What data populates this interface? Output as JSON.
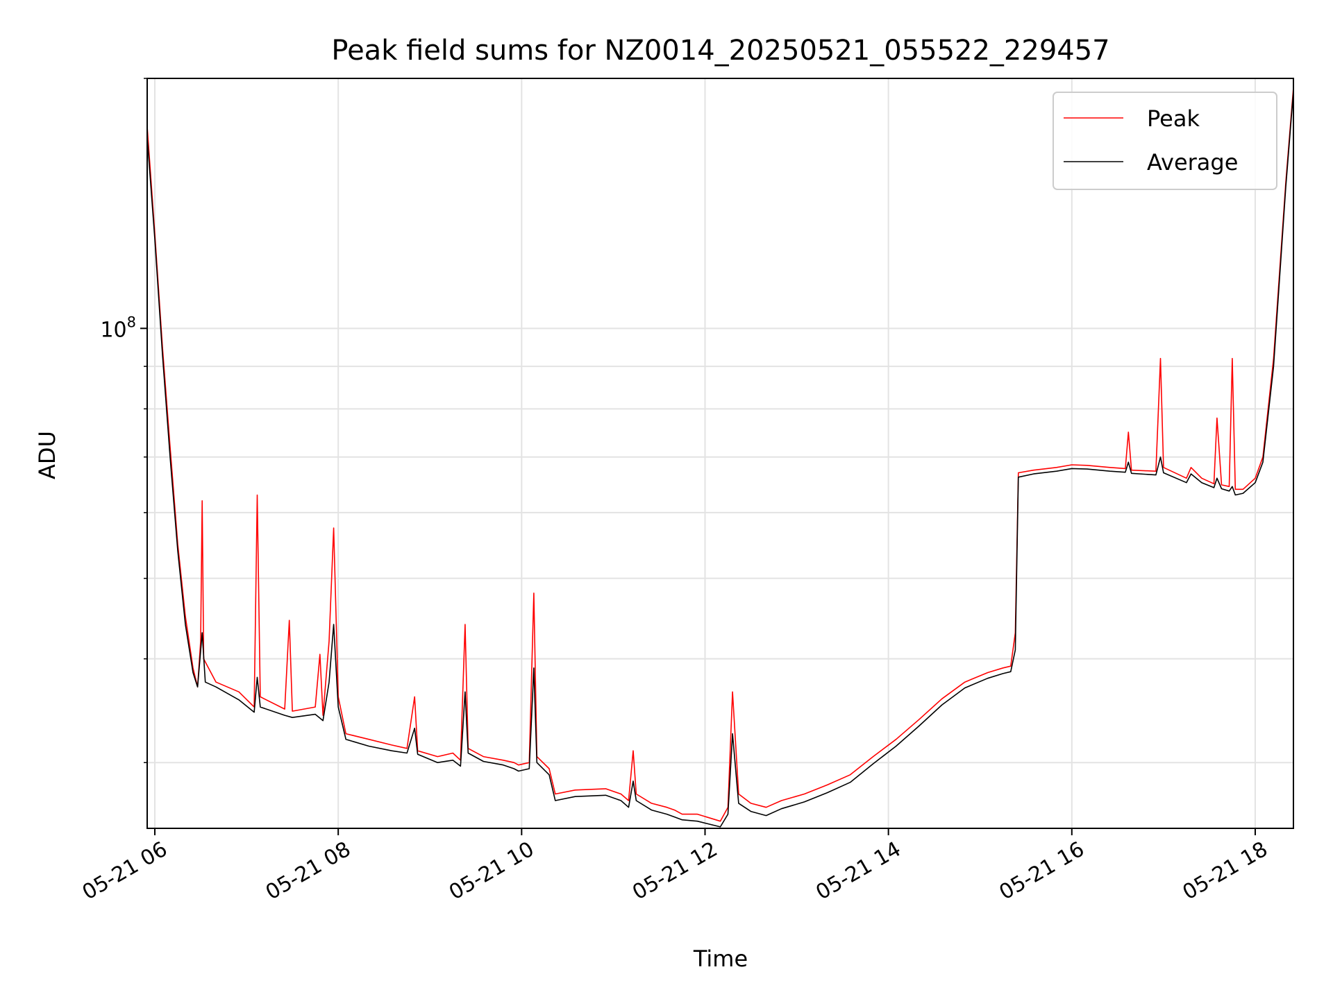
{
  "chart_data": {
    "type": "line",
    "title": "Peak field sums for NZ0014_20250521_055522_229457",
    "xlabel": "Time",
    "ylabel": "ADU",
    "yscale": "log",
    "grid": true,
    "legend_position": "top-right",
    "xlim": [
      "2025-05-21T05:55",
      "2025-05-21T18:25"
    ],
    "ylim": [
      25000000,
      200000000
    ],
    "x_ticks": [
      {
        "value": "2025-05-21T06:00",
        "label": "05-21 06"
      },
      {
        "value": "2025-05-21T08:00",
        "label": "05-21 08"
      },
      {
        "value": "2025-05-21T10:00",
        "label": "05-21 10"
      },
      {
        "value": "2025-05-21T12:00",
        "label": "05-21 12"
      },
      {
        "value": "2025-05-21T14:00",
        "label": "05-21 14"
      },
      {
        "value": "2025-05-21T16:00",
        "label": "05-21 16"
      },
      {
        "value": "2025-05-21T18:00",
        "label": "05-21 18"
      }
    ],
    "y_ticks": [
      {
        "value": 100000000,
        "base": "10",
        "exponent": "8"
      }
    ],
    "series": [
      {
        "name": "Peak",
        "color": "#ff0000",
        "points": [
          [
            "2025-05-21T05:55",
            175000000
          ],
          [
            "2025-05-21T06:00",
            130000000
          ],
          [
            "2025-05-21T06:05",
            95000000
          ],
          [
            "2025-05-21T06:10",
            72000000
          ],
          [
            "2025-05-21T06:15",
            55000000
          ],
          [
            "2025-05-21T06:20",
            45000000
          ],
          [
            "2025-05-21T06:25",
            39000000
          ],
          [
            "2025-05-21T06:28",
            37000000
          ],
          [
            "2025-05-21T06:30",
            42000000
          ],
          [
            "2025-05-21T06:31",
            62000000
          ],
          [
            "2025-05-21T06:32",
            40000000
          ],
          [
            "2025-05-21T06:40",
            37500000
          ],
          [
            "2025-05-21T06:55",
            36500000
          ],
          [
            "2025-05-21T07:05",
            35000000
          ],
          [
            "2025-05-21T07:07",
            63000000
          ],
          [
            "2025-05-21T07:09",
            36000000
          ],
          [
            "2025-05-21T07:25",
            34800000
          ],
          [
            "2025-05-21T07:28",
            44500000
          ],
          [
            "2025-05-21T07:30",
            34600000
          ],
          [
            "2025-05-21T07:45",
            35000000
          ],
          [
            "2025-05-21T07:48",
            40500000
          ],
          [
            "2025-05-21T07:50",
            34200000
          ],
          [
            "2025-05-21T07:54",
            42000000
          ],
          [
            "2025-05-21T07:57",
            57500000
          ],
          [
            "2025-05-21T08:00",
            36000000
          ],
          [
            "2025-05-21T08:05",
            32500000
          ],
          [
            "2025-05-21T08:20",
            32000000
          ],
          [
            "2025-05-21T08:35",
            31500000
          ],
          [
            "2025-05-21T08:45",
            31200000
          ],
          [
            "2025-05-21T08:50",
            36000000
          ],
          [
            "2025-05-21T08:52",
            31000000
          ],
          [
            "2025-05-21T09:05",
            30500000
          ],
          [
            "2025-05-21T09:15",
            30800000
          ],
          [
            "2025-05-21T09:20",
            30200000
          ],
          [
            "2025-05-21T09:23",
            44000000
          ],
          [
            "2025-05-21T09:25",
            31200000
          ],
          [
            "2025-05-21T09:35",
            30500000
          ],
          [
            "2025-05-21T09:48",
            30200000
          ],
          [
            "2025-05-21T09:55",
            30000000
          ],
          [
            "2025-05-21T09:58",
            29800000
          ],
          [
            "2025-05-21T10:05",
            30000000
          ],
          [
            "2025-05-21T10:08",
            48000000
          ],
          [
            "2025-05-21T10:10",
            30500000
          ],
          [
            "2025-05-21T10:18",
            29500000
          ],
          [
            "2025-05-21T10:22",
            27500000
          ],
          [
            "2025-05-21T10:35",
            27800000
          ],
          [
            "2025-05-21T10:55",
            27900000
          ],
          [
            "2025-05-21T11:05",
            27500000
          ],
          [
            "2025-05-21T11:10",
            27000000
          ],
          [
            "2025-05-21T11:13",
            31000000
          ],
          [
            "2025-05-21T11:15",
            27500000
          ],
          [
            "2025-05-21T11:25",
            26800000
          ],
          [
            "2025-05-21T11:35",
            26500000
          ],
          [
            "2025-05-21T11:40",
            26300000
          ],
          [
            "2025-05-21T11:45",
            26000000
          ],
          [
            "2025-05-21T11:55",
            26000000
          ],
          [
            "2025-05-21T12:10",
            25500000
          ],
          [
            "2025-05-21T12:15",
            26500000
          ],
          [
            "2025-05-21T12:18",
            36500000
          ],
          [
            "2025-05-21T12:22",
            27500000
          ],
          [
            "2025-05-21T12:30",
            26800000
          ],
          [
            "2025-05-21T12:40",
            26500000
          ],
          [
            "2025-05-21T12:50",
            27000000
          ],
          [
            "2025-05-21T13:05",
            27500000
          ],
          [
            "2025-05-21T13:20",
            28200000
          ],
          [
            "2025-05-21T13:35",
            29000000
          ],
          [
            "2025-05-21T13:50",
            30500000
          ],
          [
            "2025-05-21T14:05",
            32000000
          ],
          [
            "2025-05-21T14:20",
            33800000
          ],
          [
            "2025-05-21T14:35",
            35800000
          ],
          [
            "2025-05-21T14:50",
            37500000
          ],
          [
            "2025-05-21T15:05",
            38500000
          ],
          [
            "2025-05-21T15:15",
            39000000
          ],
          [
            "2025-05-21T15:20",
            39200000
          ],
          [
            "2025-05-21T15:23",
            43000000
          ],
          [
            "2025-05-21T15:25",
            67000000
          ],
          [
            "2025-05-21T15:35",
            67500000
          ],
          [
            "2025-05-21T15:50",
            68000000
          ],
          [
            "2025-05-21T16:00",
            68500000
          ],
          [
            "2025-05-21T16:10",
            68400000
          ],
          [
            "2025-05-21T16:25",
            68000000
          ],
          [
            "2025-05-21T16:35",
            67800000
          ],
          [
            "2025-05-21T16:37",
            75000000
          ],
          [
            "2025-05-21T16:39",
            67500000
          ],
          [
            "2025-05-21T16:55",
            67300000
          ],
          [
            "2025-05-21T16:58",
            92000000
          ],
          [
            "2025-05-21T17:00",
            68000000
          ],
          [
            "2025-05-21T17:15",
            66000000
          ],
          [
            "2025-05-21T17:18",
            68000000
          ],
          [
            "2025-05-21T17:25",
            66000000
          ],
          [
            "2025-05-21T17:33",
            65000000
          ],
          [
            "2025-05-21T17:35",
            78000000
          ],
          [
            "2025-05-21T17:38",
            64800000
          ],
          [
            "2025-05-21T17:43",
            64500000
          ],
          [
            "2025-05-21T17:45",
            92000000
          ],
          [
            "2025-05-21T17:47",
            64000000
          ],
          [
            "2025-05-21T17:52",
            64000000
          ],
          [
            "2025-05-21T18:00",
            66000000
          ],
          [
            "2025-05-21T18:05",
            70000000
          ],
          [
            "2025-05-21T18:12",
            92000000
          ],
          [
            "2025-05-21T18:20",
            150000000
          ],
          [
            "2025-05-21T18:25",
            195000000
          ]
        ]
      },
      {
        "name": "Average",
        "color": "#000000",
        "points": [
          [
            "2025-05-21T05:55",
            170000000
          ],
          [
            "2025-05-21T06:00",
            128000000
          ],
          [
            "2025-05-21T06:05",
            93000000
          ],
          [
            "2025-05-21T06:10",
            70000000
          ],
          [
            "2025-05-21T06:15",
            54000000
          ],
          [
            "2025-05-21T06:20",
            44000000
          ],
          [
            "2025-05-21T06:25",
            38500000
          ],
          [
            "2025-05-21T06:28",
            37000000
          ],
          [
            "2025-05-21T06:31",
            43000000
          ],
          [
            "2025-05-21T06:33",
            37500000
          ],
          [
            "2025-05-21T06:40",
            37000000
          ],
          [
            "2025-05-21T06:55",
            35700000
          ],
          [
            "2025-05-21T07:05",
            34500000
          ],
          [
            "2025-05-21T07:07",
            38000000
          ],
          [
            "2025-05-21T07:09",
            35000000
          ],
          [
            "2025-05-21T07:25",
            34200000
          ],
          [
            "2025-05-21T07:30",
            34000000
          ],
          [
            "2025-05-21T07:45",
            34300000
          ],
          [
            "2025-05-21T07:50",
            33700000
          ],
          [
            "2025-05-21T07:54",
            37500000
          ],
          [
            "2025-05-21T07:57",
            44000000
          ],
          [
            "2025-05-21T08:00",
            35000000
          ],
          [
            "2025-05-21T08:05",
            32000000
          ],
          [
            "2025-05-21T08:20",
            31400000
          ],
          [
            "2025-05-21T08:35",
            31000000
          ],
          [
            "2025-05-21T08:45",
            30800000
          ],
          [
            "2025-05-21T08:50",
            33000000
          ],
          [
            "2025-05-21T08:52",
            30700000
          ],
          [
            "2025-05-21T09:05",
            30000000
          ],
          [
            "2025-05-21T09:15",
            30200000
          ],
          [
            "2025-05-21T09:20",
            29700000
          ],
          [
            "2025-05-21T09:23",
            36500000
          ],
          [
            "2025-05-21T09:25",
            30800000
          ],
          [
            "2025-05-21T09:35",
            30100000
          ],
          [
            "2025-05-21T09:48",
            29800000
          ],
          [
            "2025-05-21T09:55",
            29500000
          ],
          [
            "2025-05-21T09:58",
            29300000
          ],
          [
            "2025-05-21T10:05",
            29500000
          ],
          [
            "2025-05-21T10:08",
            39000000
          ],
          [
            "2025-05-21T10:10",
            30000000
          ],
          [
            "2025-05-21T10:18",
            29000000
          ],
          [
            "2025-05-21T10:22",
            27000000
          ],
          [
            "2025-05-21T10:35",
            27300000
          ],
          [
            "2025-05-21T10:55",
            27400000
          ],
          [
            "2025-05-21T11:05",
            27000000
          ],
          [
            "2025-05-21T11:10",
            26500000
          ],
          [
            "2025-05-21T11:13",
            28500000
          ],
          [
            "2025-05-21T11:15",
            27000000
          ],
          [
            "2025-05-21T11:25",
            26300000
          ],
          [
            "2025-05-21T11:35",
            26000000
          ],
          [
            "2025-05-21T11:40",
            25800000
          ],
          [
            "2025-05-21T11:45",
            25600000
          ],
          [
            "2025-05-21T11:55",
            25500000
          ],
          [
            "2025-05-21T12:10",
            25100000
          ],
          [
            "2025-05-21T12:15",
            26000000
          ],
          [
            "2025-05-21T12:18",
            32500000
          ],
          [
            "2025-05-21T12:22",
            26800000
          ],
          [
            "2025-05-21T12:30",
            26200000
          ],
          [
            "2025-05-21T12:40",
            25900000
          ],
          [
            "2025-05-21T12:50",
            26400000
          ],
          [
            "2025-05-21T13:05",
            26900000
          ],
          [
            "2025-05-21T13:20",
            27600000
          ],
          [
            "2025-05-21T13:35",
            28400000
          ],
          [
            "2025-05-21T13:50",
            29900000
          ],
          [
            "2025-05-21T14:05",
            31400000
          ],
          [
            "2025-05-21T14:20",
            33200000
          ],
          [
            "2025-05-21T14:35",
            35200000
          ],
          [
            "2025-05-21T14:50",
            36900000
          ],
          [
            "2025-05-21T15:05",
            37900000
          ],
          [
            "2025-05-21T15:15",
            38400000
          ],
          [
            "2025-05-21T15:20",
            38600000
          ],
          [
            "2025-05-21T15:23",
            41000000
          ],
          [
            "2025-05-21T15:25",
            66200000
          ],
          [
            "2025-05-21T15:35",
            66800000
          ],
          [
            "2025-05-21T15:50",
            67300000
          ],
          [
            "2025-05-21T16:00",
            67800000
          ],
          [
            "2025-05-21T16:10",
            67700000
          ],
          [
            "2025-05-21T16:25",
            67300000
          ],
          [
            "2025-05-21T16:35",
            67100000
          ],
          [
            "2025-05-21T16:37",
            69000000
          ],
          [
            "2025-05-21T16:39",
            66900000
          ],
          [
            "2025-05-21T16:55",
            66600000
          ],
          [
            "2025-05-21T16:58",
            70000000
          ],
          [
            "2025-05-21T17:00",
            67000000
          ],
          [
            "2025-05-21T17:15",
            65200000
          ],
          [
            "2025-05-21T17:18",
            66800000
          ],
          [
            "2025-05-21T17:25",
            65200000
          ],
          [
            "2025-05-21T17:33",
            64300000
          ],
          [
            "2025-05-21T17:35",
            66000000
          ],
          [
            "2025-05-21T17:38",
            64100000
          ],
          [
            "2025-05-21T17:43",
            63700000
          ],
          [
            "2025-05-21T17:45",
            64500000
          ],
          [
            "2025-05-21T17:47",
            63000000
          ],
          [
            "2025-05-21T17:52",
            63300000
          ],
          [
            "2025-05-21T18:00",
            65200000
          ],
          [
            "2025-05-21T18:05",
            69000000
          ],
          [
            "2025-05-21T18:12",
            90000000
          ],
          [
            "2025-05-21T18:20",
            148000000
          ],
          [
            "2025-05-21T18:25",
            193000000
          ]
        ]
      }
    ]
  }
}
